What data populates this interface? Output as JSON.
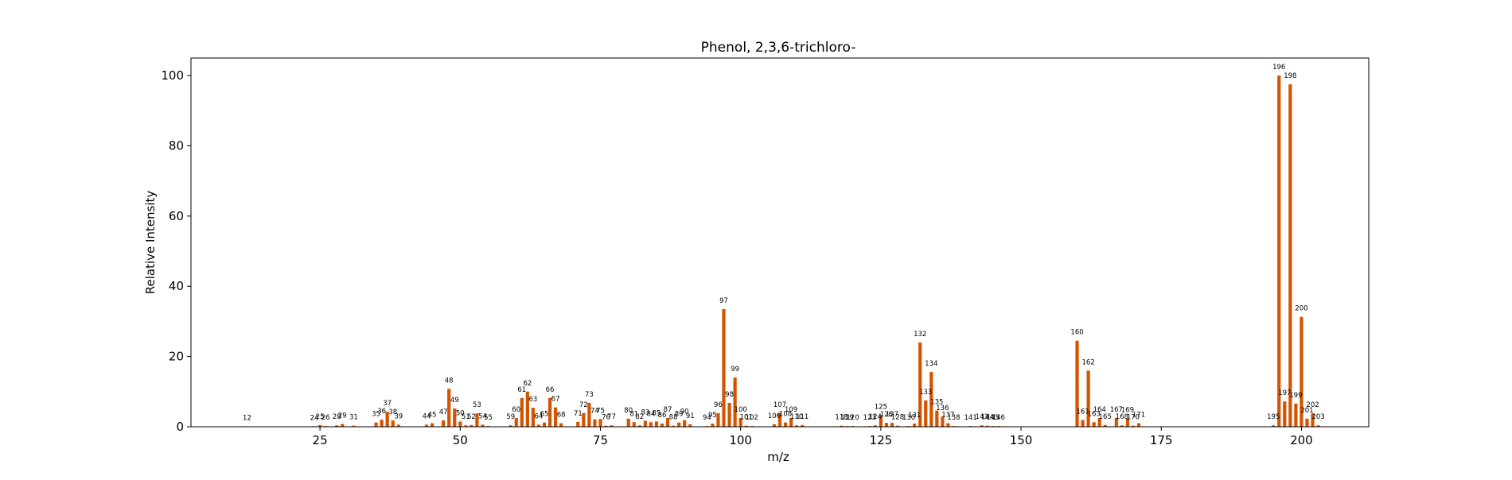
{
  "chart_data": {
    "type": "bar",
    "title": "Phenol, 2,3,6-trichloro-",
    "xlabel": "m/z",
    "ylabel": "Relative Intensity",
    "xlim": [
      2,
      212
    ],
    "ylim": [
      0,
      105
    ],
    "xticks": [
      25,
      50,
      75,
      100,
      125,
      150,
      175,
      200
    ],
    "yticks": [
      0,
      20,
      40,
      60,
      80,
      100
    ],
    "grid": false,
    "bar_color": "#d35400",
    "peaks": [
      {
        "x": 12,
        "y": 0.1
      },
      {
        "x": 24,
        "y": 0.1
      },
      {
        "x": 25,
        "y": 0.5
      },
      {
        "x": 26,
        "y": 0.2
      },
      {
        "x": 28,
        "y": 0.4
      },
      {
        "x": 29,
        "y": 0.8
      },
      {
        "x": 31,
        "y": 0.3
      },
      {
        "x": 35,
        "y": 1.2
      },
      {
        "x": 36,
        "y": 2.0
      },
      {
        "x": 37,
        "y": 4.3
      },
      {
        "x": 38,
        "y": 1.8
      },
      {
        "x": 39,
        "y": 0.6
      },
      {
        "x": 44,
        "y": 0.6
      },
      {
        "x": 45,
        "y": 1.0
      },
      {
        "x": 47,
        "y": 1.8
      },
      {
        "x": 48,
        "y": 10.8
      },
      {
        "x": 49,
        "y": 5.2
      },
      {
        "x": 50,
        "y": 1.5
      },
      {
        "x": 51,
        "y": 0.4
      },
      {
        "x": 52,
        "y": 0.5
      },
      {
        "x": 53,
        "y": 3.8
      },
      {
        "x": 54,
        "y": 0.6
      },
      {
        "x": 55,
        "y": 0.2
      },
      {
        "x": 59,
        "y": 0.4
      },
      {
        "x": 60,
        "y": 2.5
      },
      {
        "x": 61,
        "y": 8.2
      },
      {
        "x": 62,
        "y": 10.0
      },
      {
        "x": 63,
        "y": 5.4
      },
      {
        "x": 64,
        "y": 0.6
      },
      {
        "x": 65,
        "y": 1.2
      },
      {
        "x": 66,
        "y": 8.2
      },
      {
        "x": 67,
        "y": 5.5
      },
      {
        "x": 68,
        "y": 1.0
      },
      {
        "x": 71,
        "y": 1.4
      },
      {
        "x": 72,
        "y": 3.9
      },
      {
        "x": 73,
        "y": 6.8
      },
      {
        "x": 74,
        "y": 2.1
      },
      {
        "x": 75,
        "y": 2.2
      },
      {
        "x": 76,
        "y": 0.3
      },
      {
        "x": 77,
        "y": 0.4
      },
      {
        "x": 80,
        "y": 2.3
      },
      {
        "x": 81,
        "y": 1.3
      },
      {
        "x": 82,
        "y": 0.4
      },
      {
        "x": 83,
        "y": 1.7
      },
      {
        "x": 84,
        "y": 1.3
      },
      {
        "x": 85,
        "y": 1.5
      },
      {
        "x": 86,
        "y": 0.9
      },
      {
        "x": 87,
        "y": 2.5
      },
      {
        "x": 88,
        "y": 0.3
      },
      {
        "x": 89,
        "y": 1.2
      },
      {
        "x": 90,
        "y": 1.9
      },
      {
        "x": 91,
        "y": 0.7
      },
      {
        "x": 94,
        "y": 0.2
      },
      {
        "x": 95,
        "y": 0.9
      },
      {
        "x": 96,
        "y": 3.9
      },
      {
        "x": 97,
        "y": 33.5
      },
      {
        "x": 98,
        "y": 6.8
      },
      {
        "x": 99,
        "y": 14.0
      },
      {
        "x": 100,
        "y": 2.5
      },
      {
        "x": 101,
        "y": 0.3
      },
      {
        "x": 102,
        "y": 0.2
      },
      {
        "x": 106,
        "y": 0.7
      },
      {
        "x": 107,
        "y": 3.9
      },
      {
        "x": 108,
        "y": 1.2
      },
      {
        "x": 109,
        "y": 2.5
      },
      {
        "x": 110,
        "y": 0.4
      },
      {
        "x": 111,
        "y": 0.5
      },
      {
        "x": 118,
        "y": 0.3
      },
      {
        "x": 119,
        "y": 0.2
      },
      {
        "x": 120,
        "y": 0.2
      },
      {
        "x": 123,
        "y": 0.2
      },
      {
        "x": 124,
        "y": 0.4
      },
      {
        "x": 125,
        "y": 3.3
      },
      {
        "x": 126,
        "y": 1.1
      },
      {
        "x": 127,
        "y": 1.1
      },
      {
        "x": 128,
        "y": 0.3
      },
      {
        "x": 130,
        "y": 0.2
      },
      {
        "x": 131,
        "y": 0.9
      },
      {
        "x": 132,
        "y": 24.0
      },
      {
        "x": 133,
        "y": 7.5
      },
      {
        "x": 134,
        "y": 15.6
      },
      {
        "x": 135,
        "y": 4.6
      },
      {
        "x": 136,
        "y": 2.9
      },
      {
        "x": 137,
        "y": 1.0
      },
      {
        "x": 138,
        "y": 0.2
      },
      {
        "x": 141,
        "y": 0.2
      },
      {
        "x": 143,
        "y": 0.4
      },
      {
        "x": 144,
        "y": 0.3
      },
      {
        "x": 145,
        "y": 0.2
      },
      {
        "x": 146,
        "y": 0.2
      },
      {
        "x": 160,
        "y": 24.5
      },
      {
        "x": 161,
        "y": 1.9
      },
      {
        "x": 162,
        "y": 16.0
      },
      {
        "x": 163,
        "y": 1.3
      },
      {
        "x": 164,
        "y": 2.5
      },
      {
        "x": 165,
        "y": 0.5
      },
      {
        "x": 167,
        "y": 2.5
      },
      {
        "x": 168,
        "y": 0.4
      },
      {
        "x": 169,
        "y": 2.4
      },
      {
        "x": 170,
        "y": 0.3
      },
      {
        "x": 171,
        "y": 1.0
      },
      {
        "x": 195,
        "y": 0.4
      },
      {
        "x": 196,
        "y": 100.0
      },
      {
        "x": 197,
        "y": 7.2
      },
      {
        "x": 198,
        "y": 97.5
      },
      {
        "x": 199,
        "y": 6.6
      },
      {
        "x": 200,
        "y": 31.3
      },
      {
        "x": 201,
        "y": 2.3
      },
      {
        "x": 202,
        "y": 3.8
      },
      {
        "x": 203,
        "y": 0.4
      }
    ]
  }
}
